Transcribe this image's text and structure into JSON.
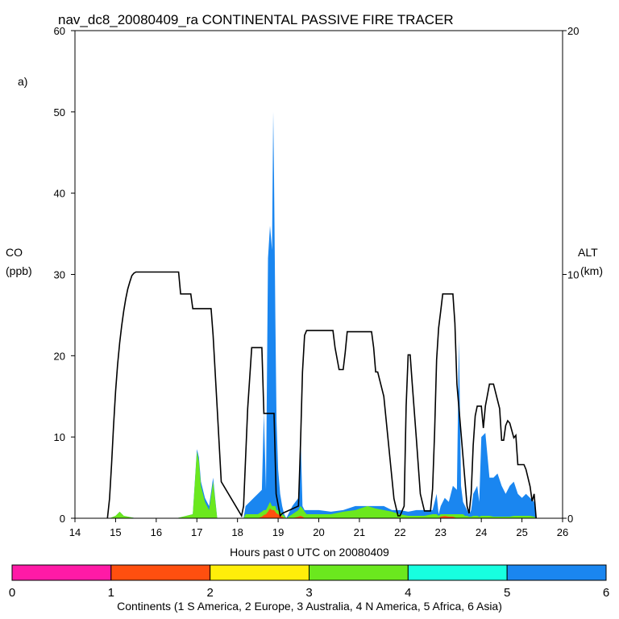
{
  "chart_data": {
    "type": "area",
    "title": "nav_dc8_20080409_ra CONTINENTAL PASSIVE FIRE TRACER",
    "panel_label": "a)",
    "xlabel": "Hours past 0 UTC on 20080409",
    "ylabel_line1": "CO",
    "ylabel_line2": "(ppb)",
    "y2label_line1": "ALT",
    "y2label_line2": "(km)",
    "xlim": [
      14,
      26
    ],
    "ylim": [
      0,
      60
    ],
    "y2lim": [
      0,
      20
    ],
    "x_ticks": [
      14,
      15,
      16,
      17,
      18,
      19,
      20,
      21,
      22,
      23,
      24,
      25,
      26
    ],
    "y_ticks": [
      0,
      10,
      20,
      30,
      40,
      50,
      60
    ],
    "y2_ticks": [
      0,
      10,
      20
    ],
    "colorbar": {
      "label": "Continents (1 S America, 2 Europe, 3 Australia, 4 N America, 5 Africa, 6 Asia)",
      "ticks": [
        "0",
        "1",
        "2",
        "3",
        "4",
        "5",
        "6"
      ],
      "colors": [
        "#ff1aa6",
        "#ff4f0f",
        "#ffee0a",
        "#6be81e",
        "#17ffe0",
        "#1a86f0"
      ]
    },
    "series": [
      {
        "name": "Asia",
        "color": "#1a86f0",
        "x": [
          14.85,
          15.0,
          15.1,
          15.2,
          15.5,
          16.5,
          16.9,
          17.0,
          17.05,
          17.1,
          17.2,
          17.3,
          17.4,
          17.5,
          18.15,
          18.2,
          18.3,
          18.4,
          18.5,
          18.6,
          18.65,
          18.7,
          18.75,
          18.8,
          18.85,
          18.88,
          18.9,
          18.93,
          18.96,
          19.0,
          19.05,
          19.1,
          19.15,
          19.2,
          19.35,
          19.5,
          19.55,
          19.6,
          19.65,
          19.7,
          19.8,
          20.0,
          20.3,
          20.6,
          20.9,
          21.2,
          21.4,
          21.6,
          21.8,
          22.0,
          22.2,
          22.4,
          22.6,
          22.8,
          22.9,
          22.95,
          23.0,
          23.1,
          23.2,
          23.3,
          23.4,
          23.45,
          23.5,
          23.55,
          23.6,
          23.65,
          23.7,
          23.75,
          23.8,
          23.9,
          23.95,
          24.0,
          24.1,
          24.2,
          24.3,
          24.4,
          24.5,
          24.6,
          24.7,
          24.8,
          24.9,
          25.0,
          25.1,
          25.2,
          25.3,
          25.35
        ],
        "y": [
          0,
          0.3,
          0.8,
          0.3,
          0,
          0,
          0.5,
          8.5,
          7.5,
          4.5,
          2.5,
          1.5,
          5,
          0,
          0,
          1.5,
          2,
          2.5,
          3,
          3.5,
          13,
          3.5,
          32,
          36,
          33,
          50,
          42,
          25,
          12,
          6,
          3,
          1.5,
          0.5,
          0,
          1.5,
          2.5,
          11,
          1.5,
          1,
          1,
          1,
          1,
          0.8,
          1,
          1.5,
          1.5,
          1.5,
          1.5,
          1,
          1,
          0.8,
          1,
          1,
          1,
          3,
          0.5,
          1.5,
          2.5,
          2,
          4,
          3.5,
          22,
          4,
          2,
          1.5,
          1,
          0.5,
          1,
          3,
          4,
          2,
          10,
          10.5,
          5,
          5,
          5.5,
          4,
          3,
          4,
          4.5,
          3,
          2.5,
          3,
          2.5,
          2,
          0
        ]
      },
      {
        "name": "N America",
        "color": "#6be81e",
        "x": [
          14.85,
          15.0,
          15.1,
          15.2,
          15.5,
          16.5,
          16.9,
          17.0,
          17.05,
          17.1,
          17.2,
          17.3,
          17.4,
          17.5,
          18.15,
          18.2,
          18.3,
          18.4,
          18.5,
          18.6,
          18.65,
          18.7,
          18.75,
          18.8,
          18.85,
          18.88,
          18.9,
          18.93,
          18.96,
          19.0,
          19.05,
          19.1,
          19.15,
          19.2,
          19.35,
          19.5,
          19.55,
          19.6,
          19.65,
          19.7,
          19.8,
          20.0,
          20.3,
          20.6,
          20.9,
          21.2,
          21.4,
          21.6,
          21.8,
          22.0,
          22.2,
          22.4,
          22.6,
          22.8,
          22.9,
          22.95,
          23.0,
          23.1,
          23.2,
          23.3,
          23.4,
          23.45,
          23.5,
          23.55,
          23.6,
          23.65,
          23.7,
          23.75,
          23.8,
          23.9,
          23.95,
          24.0,
          24.1,
          24.2,
          24.3,
          24.4,
          24.5,
          24.6,
          24.7,
          24.8,
          24.9,
          25.0,
          25.1,
          25.2,
          25.3,
          25.35
        ],
        "y": [
          0,
          0.3,
          0.8,
          0.3,
          0,
          0,
          0.5,
          8.2,
          7,
          4,
          2,
          1,
          4.5,
          0,
          0,
          0.5,
          0.5,
          0.5,
          0.5,
          0.8,
          1,
          1,
          1.5,
          2,
          1.5,
          1.5,
          1.5,
          1.5,
          1,
          1,
          0.8,
          0.5,
          0.3,
          0,
          0.5,
          1,
          1.5,
          1.2,
          0.8,
          0.5,
          0.5,
          0.5,
          0.5,
          0.8,
          1,
          1.5,
          1.2,
          1,
          0.8,
          0.5,
          0.3,
          0.3,
          0.3,
          0.5,
          0.5,
          0.3,
          0.5,
          0.5,
          0.5,
          0.5,
          0.5,
          0.5,
          0.5,
          0.5,
          0.3,
          0.3,
          0.2,
          0.2,
          0.3,
          0.3,
          0.2,
          0.3,
          0.3,
          0.3,
          0.2,
          0.2,
          0.2,
          0.2,
          0.2,
          0.3,
          0.3,
          0.3,
          0.3,
          0.3,
          0.2,
          0
        ]
      },
      {
        "name": "Europe",
        "color": "#ff4f0f",
        "x": [
          14.85,
          15.0,
          15.1,
          15.2,
          15.5,
          16.5,
          16.9,
          17.0,
          17.05,
          17.1,
          17.2,
          17.3,
          17.4,
          17.5,
          18.15,
          18.2,
          18.3,
          18.4,
          18.5,
          18.6,
          18.65,
          18.7,
          18.75,
          18.8,
          18.85,
          18.88,
          18.9,
          18.93,
          18.96,
          19.0,
          19.05,
          19.1,
          19.15,
          19.2,
          19.35,
          19.5,
          19.55,
          19.6,
          19.65,
          19.7,
          19.8,
          20.0,
          20.3,
          20.6,
          20.9,
          21.2,
          21.4,
          21.6,
          21.8,
          22.0,
          22.2,
          22.4,
          22.6,
          22.8,
          22.9,
          22.95,
          23.0,
          23.1,
          23.2,
          23.3,
          23.4,
          23.45,
          23.5,
          23.55,
          23.6,
          23.65,
          23.7,
          23.75,
          23.8,
          23.9,
          23.95,
          24.0,
          24.1,
          24.2,
          24.3,
          24.4,
          24.5,
          24.6,
          24.7,
          24.8,
          24.9,
          25.0,
          25.1,
          25.2,
          25.3,
          25.35
        ],
        "y": [
          0,
          0,
          0,
          0,
          0,
          0,
          0,
          0,
          0,
          0,
          0,
          0,
          0,
          0,
          0,
          0,
          0,
          0,
          0,
          0.2,
          0.4,
          0.5,
          0.8,
          1.2,
          1,
          1,
          1,
          0.8,
          0.6,
          0.5,
          0.3,
          0.2,
          0,
          0,
          0,
          0.2,
          0.3,
          0.2,
          0,
          0,
          0,
          0,
          0,
          0,
          0,
          0,
          0,
          0,
          0,
          0,
          0,
          0,
          0,
          0,
          0,
          0,
          0.2,
          0.3,
          0.2,
          0.2,
          0,
          0,
          0,
          0,
          0,
          0,
          0,
          0,
          0,
          0,
          0,
          0,
          0,
          0,
          0,
          0,
          0,
          0,
          0,
          0,
          0,
          0,
          0,
          0,
          0,
          0
        ]
      },
      {
        "name": "altitude",
        "color": "#000000",
        "axis": "right",
        "x": [
          14.8,
          14.85,
          14.9,
          14.95,
          15.0,
          15.05,
          15.1,
          15.15,
          15.2,
          15.25,
          15.3,
          15.35,
          15.4,
          15.45,
          15.5,
          16.55,
          16.6,
          16.85,
          16.9,
          17.35,
          17.4,
          17.5,
          17.6,
          18.1,
          18.15,
          18.25,
          18.35,
          18.6,
          18.65,
          18.7,
          18.9,
          18.95,
          19.05,
          19.1,
          19.5,
          19.55,
          19.6,
          19.65,
          19.7,
          20.35,
          20.4,
          20.5,
          20.6,
          20.65,
          20.7,
          21.3,
          21.35,
          21.4,
          21.45,
          21.6,
          21.75,
          21.85,
          21.95,
          22.0,
          22.1,
          22.15,
          22.2,
          22.25,
          22.3,
          22.4,
          22.5,
          22.6,
          22.75,
          22.8,
          22.85,
          22.9,
          22.95,
          23.0,
          23.05,
          23.3,
          23.35,
          23.4,
          23.5,
          23.6,
          23.65,
          23.7,
          23.75,
          23.8,
          23.85,
          23.9,
          24.0,
          24.05,
          24.1,
          24.2,
          24.25,
          24.3,
          24.45,
          24.5,
          24.55,
          24.6,
          24.65,
          24.7,
          24.8,
          24.85,
          24.9,
          25.0,
          25.05,
          25.1,
          25.2,
          25.25,
          25.3,
          25.35
        ],
        "y": [
          0,
          0.8,
          2.2,
          3.8,
          5.2,
          6.3,
          7.2,
          7.9,
          8.5,
          9.0,
          9.4,
          9.7,
          9.95,
          10.05,
          10.1,
          10.1,
          9.2,
          9.2,
          8.6,
          8.6,
          7.5,
          4.5,
          1.5,
          0.1,
          0.5,
          4.5,
          7.0,
          7.0,
          4.3,
          4.3,
          4.3,
          1.0,
          0.1,
          0.2,
          0.5,
          3.0,
          6.0,
          7.5,
          7.7,
          7.7,
          7.0,
          6.1,
          6.1,
          6.8,
          7.65,
          7.65,
          7.0,
          6.0,
          6.0,
          5.0,
          2.5,
          0.8,
          0.1,
          0.1,
          0.5,
          4.6,
          6.7,
          6.7,
          5.5,
          3.3,
          1.0,
          0.3,
          0.3,
          1.2,
          3.5,
          6.5,
          7.8,
          8.5,
          9.2,
          9.2,
          8.0,
          5.5,
          3.5,
          1.5,
          0.5,
          0.2,
          1.0,
          3.0,
          4.2,
          4.6,
          4.6,
          3.7,
          4.6,
          5.5,
          5.5,
          5.5,
          4.5,
          3.2,
          3.2,
          3.8,
          4.0,
          3.9,
          3.3,
          3.4,
          2.2,
          2.2,
          2.2,
          2.0,
          1.3,
          0.7,
          1.0,
          0
        ]
      }
    ]
  }
}
